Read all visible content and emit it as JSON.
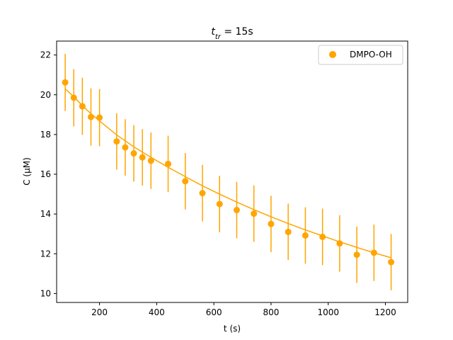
{
  "chart_data": {
    "type": "scatter",
    "title_main": "t",
    "title_sub": "tr",
    "title_rest": " = 15s",
    "xlabel": "t (s)",
    "ylabel": "C (µM)",
    "xlim": [
      50,
      1278
    ],
    "ylim": [
      9.55,
      22.7
    ],
    "xticks": [
      200,
      400,
      600,
      800,
      1000,
      1200
    ],
    "yticks": [
      10,
      12,
      14,
      16,
      18,
      20,
      22
    ],
    "grid": false,
    "legend_position": "top-right",
    "color": "#FFA500",
    "series": [
      {
        "name": "DMPO-OH",
        "x": [
          80,
          110,
          140,
          170,
          200,
          260,
          290,
          320,
          350,
          380,
          440,
          500,
          560,
          620,
          680,
          740,
          800,
          860,
          920,
          980,
          1040,
          1100,
          1160,
          1220
        ],
        "y": [
          20.62,
          19.85,
          19.42,
          18.88,
          18.85,
          17.65,
          17.35,
          17.05,
          16.85,
          16.68,
          16.52,
          15.65,
          15.05,
          14.5,
          14.2,
          14.02,
          13.5,
          13.1,
          12.92,
          12.85,
          12.52,
          11.95,
          12.05,
          11.58
        ],
        "yerr": [
          1.44,
          1.44,
          1.44,
          1.44,
          1.44,
          1.42,
          1.42,
          1.42,
          1.42,
          1.42,
          1.42,
          1.42,
          1.42,
          1.42,
          1.42,
          1.42,
          1.42,
          1.42,
          1.42,
          1.42,
          1.42,
          1.42,
          1.42,
          1.42
        ]
      }
    ],
    "fit_line": {
      "x": [
        80,
        110,
        140,
        170,
        200,
        260,
        320,
        380,
        440,
        500,
        560,
        620,
        680,
        740,
        800,
        860,
        920,
        980,
        1040,
        1100,
        1160,
        1220
      ],
      "y": [
        20.3,
        19.9,
        19.45,
        19.05,
        18.68,
        17.98,
        17.38,
        16.85,
        16.35,
        15.88,
        15.42,
        15.0,
        14.6,
        14.22,
        13.86,
        13.52,
        13.2,
        12.9,
        12.6,
        12.32,
        12.05,
        11.8
      ]
    }
  }
}
